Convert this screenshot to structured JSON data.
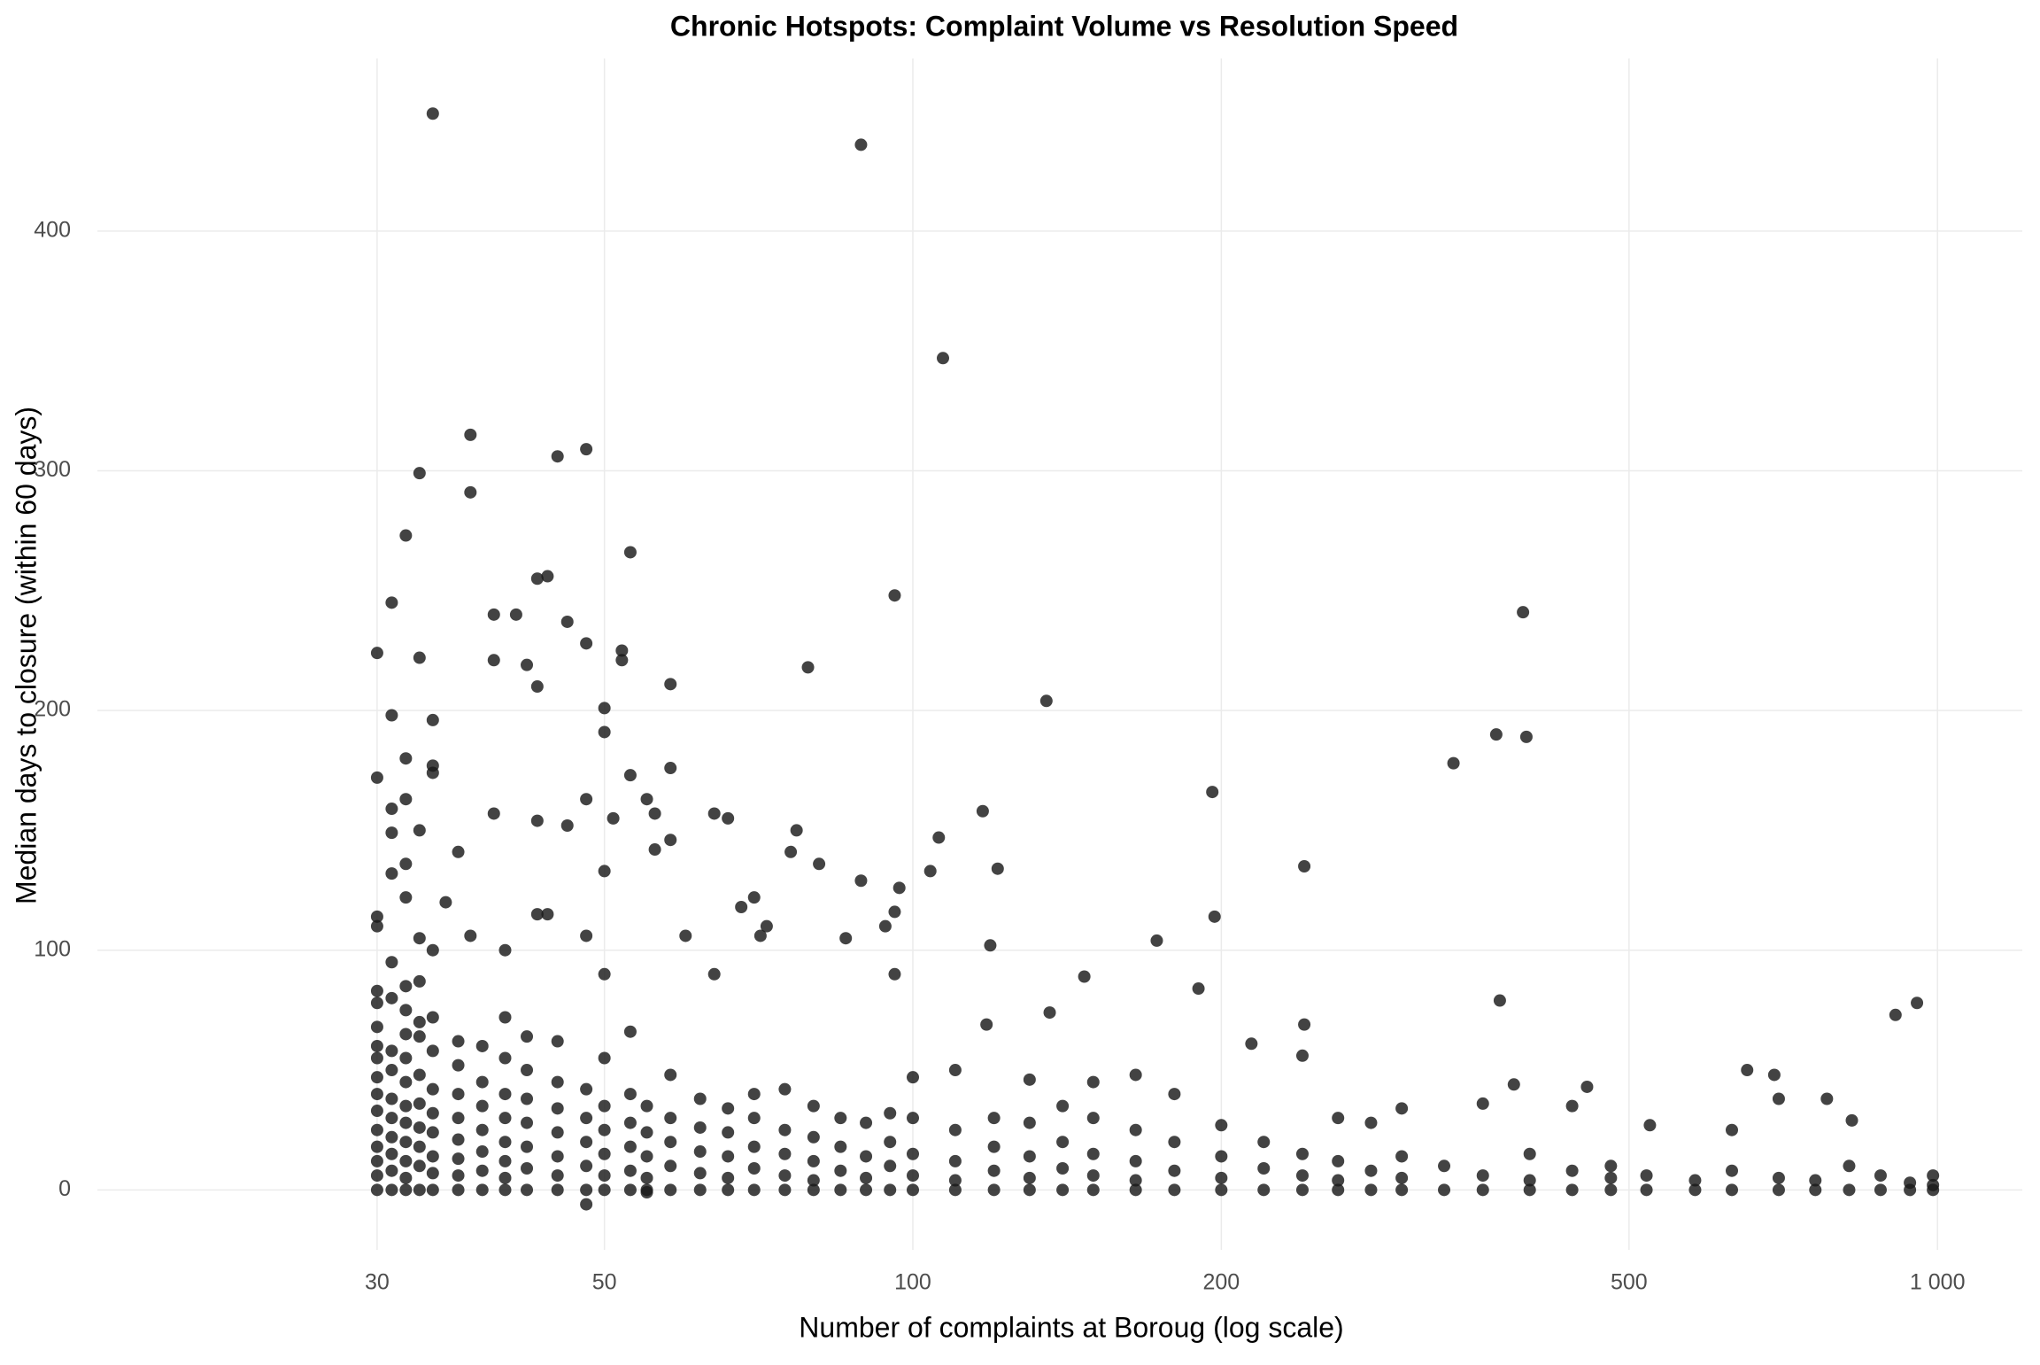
{
  "chart_data": {
    "type": "scatter",
    "title": "Chronic Hotspots: Complaint Volume vs Resolution Speed",
    "x_label": "Number of complaints at Boroug (log scale)",
    "y_label": "Median days to closure (within 60 days)",
    "x_scale": "log",
    "grid": true,
    "color": "#1a1a1a",
    "xlim": [
      16,
      1210
    ],
    "ylim": [
      -25,
      472
    ],
    "xticks": [
      30,
      50,
      100,
      200,
      500,
      {
        "value": 1000,
        "label": "1 000"
      }
    ],
    "yticks": [
      0,
      100,
      200,
      300,
      400
    ],
    "x": [
      34,
      89,
      107,
      37,
      33,
      37,
      48,
      45,
      32,
      53,
      44,
      43,
      96,
      31,
      394,
      39,
      41,
      46,
      30,
      48,
      52,
      52,
      33,
      39,
      42,
      79,
      43,
      58,
      135,
      50,
      31,
      34,
      50,
      371,
      397,
      337,
      34,
      58,
      34,
      30,
      53,
      32,
      196,
      48,
      32,
      55,
      31,
      117,
      56,
      39,
      64,
      66,
      51,
      43,
      46,
      33,
      77,
      31,
      106,
      58,
      56,
      36,
      76,
      81,
      241,
      121,
      104,
      50,
      31,
      89,
      70,
      97,
      32,
      32,
      35,
      68,
      30,
      197,
      96,
      72,
      94,
      30,
      173,
      33,
      37,
      60,
      86,
      71,
      48,
      119,
      44,
      43,
      40,
      34,
      96,
      64,
      50,
      147,
      374,
      910,
      955,
      190,
      241,
      118,
      136,
      652,
      693,
      455,
      386,
      700,
      780,
      825,
      524,
      214,
      30,
      30,
      30,
      30,
      30,
      30,
      30,
      30,
      30,
      30,
      30,
      30,
      30,
      31,
      31,
      31,
      31,
      31,
      31,
      31,
      31,
      31,
      31,
      32,
      32,
      32,
      32,
      32,
      32,
      32,
      32,
      32,
      32,
      32,
      33,
      33,
      33,
      33,
      33,
      33,
      33,
      33,
      33,
      34,
      34,
      34,
      34,
      34,
      34,
      34,
      34,
      36,
      36,
      36,
      36,
      36,
      36,
      36,
      36,
      38,
      38,
      38,
      38,
      38,
      38,
      38,
      40,
      40,
      40,
      40,
      40,
      40,
      40,
      40,
      42,
      42,
      42,
      42,
      42,
      42,
      42,
      45,
      45,
      45,
      45,
      45,
      45,
      45,
      48,
      48,
      48,
      48,
      48,
      48,
      50,
      50,
      50,
      50,
      50,
      50,
      53,
      53,
      53,
      53,
      53,
      53,
      55,
      55,
      55,
      55,
      55,
      55,
      58,
      58,
      58,
      58,
      58,
      62,
      62,
      62,
      62,
      62,
      66,
      66,
      66,
      66,
      66,
      70,
      70,
      70,
      70,
      70,
      75,
      75,
      75,
      75,
      75,
      80,
      80,
      80,
      80,
      80,
      85,
      85,
      85,
      85,
      90,
      90,
      90,
      90,
      95,
      95,
      95,
      95,
      100,
      100,
      100,
      100,
      100,
      110,
      110,
      110,
      110,
      110,
      120,
      120,
      120,
      120,
      130,
      130,
      130,
      130,
      130,
      140,
      140,
      140,
      140,
      150,
      150,
      150,
      150,
      150,
      165,
      165,
      165,
      165,
      165,
      180,
      180,
      180,
      180,
      200,
      200,
      200,
      200,
      220,
      220,
      220,
      240,
      240,
      240,
      240,
      260,
      260,
      260,
      260,
      280,
      280,
      280,
      300,
      300,
      300,
      300,
      330,
      330,
      360,
      360,
      360,
      400,
      400,
      400,
      440,
      440,
      440,
      480,
      480,
      480,
      520,
      520,
      580,
      580,
      630,
      630,
      630,
      700,
      700,
      760,
      760,
      820,
      820,
      880,
      880,
      940,
      940,
      990,
      990,
      990
    ],
    "values": [
      449,
      436,
      347,
      315,
      299,
      291,
      309,
      306,
      273,
      266,
      256,
      255,
      248,
      245,
      241,
      240,
      240,
      237,
      224,
      228,
      225,
      221,
      222,
      221,
      219,
      218,
      210,
      211,
      204,
      201,
      198,
      196,
      191,
      190,
      189,
      178,
      177,
      176,
      174,
      172,
      173,
      180,
      166,
      163,
      163,
      163,
      159,
      158,
      157,
      157,
      157,
      155,
      155,
      154,
      152,
      150,
      150,
      149,
      147,
      146,
      142,
      141,
      141,
      136,
      135,
      134,
      133,
      133,
      132,
      129,
      122,
      126,
      136,
      122,
      120,
      118,
      114,
      114,
      116,
      110,
      110,
      110,
      104,
      105,
      106,
      106,
      105,
      106,
      106,
      102,
      115,
      115,
      100,
      100,
      90,
      90,
      90,
      89,
      79,
      73,
      78,
      84,
      69,
      69,
      74,
      50,
      48,
      43,
      44,
      38,
      38,
      29,
      27,
      61,
      0,
      6,
      12,
      18,
      25,
      33,
      40,
      47,
      55,
      60,
      68,
      78,
      83,
      0,
      8,
      15,
      22,
      30,
      38,
      50,
      58,
      80,
      95,
      0,
      5,
      12,
      20,
      28,
      35,
      45,
      55,
      65,
      75,
      85,
      0,
      10,
      18,
      26,
      36,
      48,
      64,
      70,
      87,
      0,
      7,
      14,
      24,
      32,
      42,
      58,
      72,
      0,
      6,
      13,
      21,
      30,
      40,
      52,
      62,
      0,
      8,
      16,
      25,
      35,
      45,
      60,
      0,
      5,
      12,
      20,
      30,
      40,
      55,
      72,
      0,
      9,
      18,
      28,
      38,
      50,
      64,
      0,
      6,
      14,
      24,
      34,
      45,
      62,
      0,
      10,
      20,
      30,
      42,
      -6,
      0,
      6,
      15,
      25,
      35,
      55,
      0,
      8,
      18,
      28,
      40,
      66,
      0,
      5,
      14,
      24,
      35,
      -1,
      0,
      10,
      20,
      30,
      48,
      0,
      7,
      16,
      26,
      38,
      0,
      5,
      14,
      24,
      34,
      0,
      9,
      18,
      30,
      40,
      0,
      6,
      15,
      25,
      42,
      0,
      4,
      12,
      22,
      35,
      0,
      8,
      18,
      30,
      0,
      5,
      14,
      28,
      0,
      10,
      20,
      32,
      0,
      6,
      15,
      30,
      47,
      0,
      4,
      12,
      25,
      50,
      0,
      8,
      18,
      30,
      0,
      5,
      14,
      28,
      46,
      0,
      9,
      20,
      35,
      0,
      6,
      15,
      30,
      45,
      0,
      4,
      12,
      25,
      48,
      0,
      8,
      20,
      40,
      0,
      5,
      14,
      27,
      0,
      9,
      20,
      0,
      6,
      15,
      56,
      0,
      4,
      12,
      30,
      0,
      8,
      28,
      0,
      5,
      14,
      34,
      0,
      10,
      0,
      6,
      36,
      0,
      4,
      15,
      0,
      8,
      35,
      0,
      5,
      10,
      0,
      6,
      0,
      4,
      0,
      8,
      25,
      0,
      5,
      0,
      4,
      0,
      10,
      0,
      6,
      0,
      3,
      0,
      2,
      6
    ]
  }
}
